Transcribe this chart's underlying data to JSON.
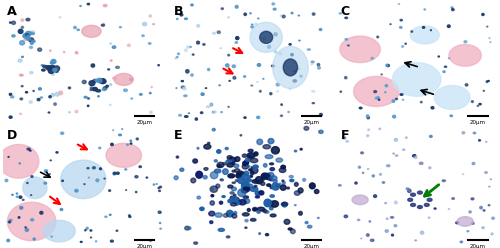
{
  "figsize": [
    5.0,
    2.48
  ],
  "dpi": 100,
  "panels": [
    "A",
    "B",
    "C",
    "D",
    "E",
    "F"
  ],
  "grid_rows": 2,
  "grid_cols": 3,
  "label_fontsize": 9,
  "label_color": "black",
  "label_fontweight": "bold",
  "background_color": "#ffffff",
  "scale_bar_color": "black",
  "scale_bar_text": "20μm",
  "panel_colors": {
    "A": {
      "bg": "#e8f4f8",
      "cell_dark": "#1a3a6b",
      "cell_mid": "#4a90c4",
      "cell_light": "#a8d0e8",
      "cell_pink": "#e8a0b0"
    },
    "B": {
      "bg": "#e8f4f8",
      "cell_dark": "#1a3a6b",
      "cell_mid": "#4a90c4",
      "cell_light": "#b8d8f0",
      "cell_pink": "#e8a0b0"
    },
    "C": {
      "bg": "#ffffff",
      "cell_dark": "#1a3a6b",
      "cell_mid": "#5a9fd4",
      "cell_light": "#c8e4f8",
      "cell_pink": "#f0b0c0"
    },
    "D": {
      "bg": "#e8f4f8",
      "cell_dark": "#1a3a6b",
      "cell_mid": "#4a90c4",
      "cell_light": "#b8d8f0",
      "cell_pink": "#f0b0c0"
    },
    "E": {
      "bg": "#d0e8f8",
      "cell_dark": "#0a1a4b",
      "cell_mid": "#2060a8",
      "cell_light": "#6090d0",
      "cell_pink": "#c0d8f0"
    },
    "F": {
      "bg": "#f0f4f8",
      "cell_dark": "#2a3a7b",
      "cell_mid": "#6080c0",
      "cell_light": "#a0b8e0",
      "cell_pink": "#c8a0d0"
    }
  },
  "arrow_colors": {
    "B": "red",
    "C": "black",
    "D_red": "red",
    "D_black": "black",
    "F": "green"
  }
}
